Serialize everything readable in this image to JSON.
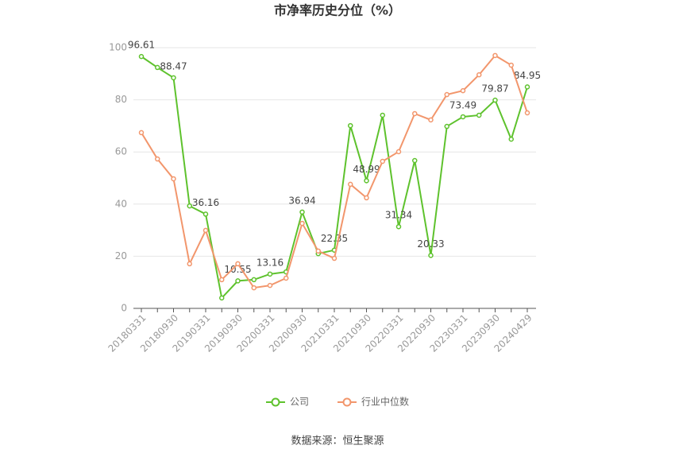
{
  "chart_data": {
    "type": "line",
    "title": "市净率历史分位（%）",
    "categories": [
      "20180331",
      null,
      "20180930",
      null,
      "20190331",
      null,
      "20190930",
      null,
      "20200331",
      null,
      "20200930",
      null,
      "20210331",
      null,
      "20210930",
      null,
      "20220331",
      null,
      "20220930",
      null,
      "20230331",
      null,
      "20230930",
      null,
      "20240429"
    ],
    "series": [
      {
        "name": "公司",
        "color": "#5ec22d",
        "values": [
          96.61,
          92.4,
          88.47,
          39.3,
          36.16,
          4.0,
          10.55,
          11.0,
          13.16,
          14.0,
          36.94,
          21.0,
          22.35,
          70.1,
          48.99,
          74.1,
          31.34,
          56.7,
          20.33,
          69.8,
          73.49,
          74.1,
          79.87,
          64.9,
          84.95
        ],
        "value_labels": [
          "96.61",
          null,
          "88.47",
          null,
          "36.16",
          null,
          "10.55",
          null,
          "13.16",
          null,
          "36.94",
          null,
          "22.35",
          null,
          "48.99",
          null,
          "31.34",
          null,
          "20.33",
          null,
          "73.49",
          null,
          "79.87",
          null,
          "84.95"
        ]
      },
      {
        "name": "行业中位数",
        "color": "#f2966c",
        "values": [
          67.4,
          57.3,
          49.7,
          17.1,
          29.9,
          11.0,
          17.1,
          7.9,
          8.8,
          11.6,
          32.6,
          22.0,
          19.2,
          47.6,
          42.4,
          56.4,
          60.1,
          74.7,
          72.3,
          82.0,
          83.5,
          89.6,
          97.0,
          93.3,
          75.0
        ]
      }
    ],
    "ylim": [
      0,
      100
    ],
    "yticks": [
      0,
      20,
      40,
      60,
      80,
      100
    ],
    "grid": true,
    "legend": "bottom",
    "source": "数据来源：恒生聚源"
  }
}
